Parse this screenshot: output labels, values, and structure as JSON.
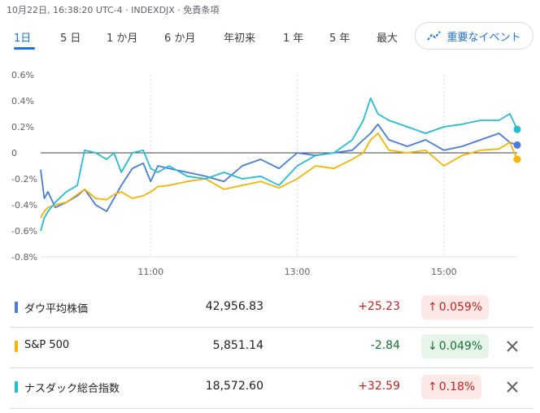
{
  "header": {
    "timestamp_line": "10月22日, 16:38:20 UTC-4 · INDEXDJX · 免責条項"
  },
  "tabs": [
    {
      "label": "1日",
      "active": true
    },
    {
      "label": "5 日",
      "active": false
    },
    {
      "label": "1 か月",
      "active": false
    },
    {
      "label": "6 か月",
      "active": false
    },
    {
      "label": "年初来",
      "active": false
    },
    {
      "label": "1 年",
      "active": false
    },
    {
      "label": "5 年",
      "active": false
    },
    {
      "label": "最大",
      "active": false
    }
  ],
  "events_button": {
    "label": "重要なイベント",
    "icon": "trend-line-icon"
  },
  "chart_data": {
    "type": "line",
    "title": "",
    "xlabel": "",
    "ylabel": "",
    "y_tick_labels": [
      "0.6%",
      "0.4%",
      "0.2%",
      "0",
      "-0.2%",
      "-0.4%",
      "-0.6%",
      "-0.8%"
    ],
    "y_ticks": [
      0.6,
      0.4,
      0.2,
      0,
      -0.2,
      -0.4,
      -0.6,
      -0.8
    ],
    "ylim": [
      -0.8,
      0.6
    ],
    "x_tick_labels": [
      "11:00",
      "13:00",
      "15:00"
    ],
    "x_ticks_hours": [
      11,
      13,
      15
    ],
    "xlim_hours": [
      9.5,
      16
    ],
    "grid": "vertical dashed",
    "series": [
      {
        "name": "ダウ平均株価",
        "color": "#4a7bdc",
        "x": [
          9.5,
          9.55,
          9.6,
          9.7,
          9.85,
          10,
          10.1,
          10.25,
          10.4,
          10.5,
          10.6,
          10.75,
          10.9,
          11,
          11.1,
          11.25,
          11.5,
          11.75,
          12,
          12.25,
          12.5,
          12.75,
          13,
          13.25,
          13.5,
          13.75,
          13.9,
          14,
          14.1,
          14.25,
          14.5,
          14.75,
          15,
          15.25,
          15.5,
          15.75,
          15.9,
          16
        ],
        "y": [
          -0.13,
          -0.35,
          -0.3,
          -0.42,
          -0.38,
          -0.33,
          -0.28,
          -0.4,
          -0.45,
          -0.35,
          -0.25,
          -0.12,
          -0.08,
          -0.22,
          -0.1,
          -0.12,
          -0.15,
          -0.18,
          -0.22,
          -0.1,
          -0.05,
          -0.12,
          0.0,
          -0.02,
          0.0,
          0.02,
          0.1,
          0.15,
          0.22,
          0.1,
          0.05,
          0.1,
          0.02,
          0.05,
          0.1,
          0.15,
          0.08,
          0.06
        ]
      },
      {
        "name": "S&P 500",
        "color": "#f4b400",
        "x": [
          9.5,
          9.55,
          9.6,
          9.7,
          9.85,
          10,
          10.1,
          10.25,
          10.4,
          10.5,
          10.6,
          10.75,
          10.9,
          11,
          11.1,
          11.25,
          11.5,
          11.75,
          12,
          12.25,
          12.5,
          12.75,
          13,
          13.25,
          13.5,
          13.75,
          13.9,
          14,
          14.1,
          14.25,
          14.5,
          14.75,
          15,
          15.25,
          15.5,
          15.75,
          15.9,
          16
        ],
        "y": [
          -0.5,
          -0.45,
          -0.42,
          -0.4,
          -0.38,
          -0.32,
          -0.28,
          -0.35,
          -0.36,
          -0.32,
          -0.3,
          -0.35,
          -0.33,
          -0.3,
          -0.26,
          -0.25,
          -0.22,
          -0.2,
          -0.28,
          -0.25,
          -0.22,
          -0.27,
          -0.2,
          -0.1,
          -0.12,
          -0.05,
          0.0,
          0.1,
          0.15,
          0.02,
          0.0,
          0.02,
          -0.1,
          -0.02,
          0.02,
          0.03,
          0.08,
          -0.05
        ]
      },
      {
        "name": "ナスダック総合指数",
        "color": "#26bcd6",
        "x": [
          9.5,
          9.55,
          9.6,
          9.7,
          9.85,
          10,
          10.1,
          10.25,
          10.4,
          10.5,
          10.6,
          10.75,
          10.9,
          11,
          11.1,
          11.25,
          11.5,
          11.75,
          12,
          12.25,
          12.5,
          12.75,
          13,
          13.25,
          13.5,
          13.75,
          13.9,
          14,
          14.1,
          14.25,
          14.5,
          14.75,
          15,
          15.25,
          15.5,
          15.75,
          15.9,
          16
        ],
        "y": [
          -0.6,
          -0.5,
          -0.45,
          -0.38,
          -0.3,
          -0.25,
          0.02,
          0.0,
          -0.05,
          0.0,
          -0.15,
          0.0,
          0.02,
          -0.12,
          -0.15,
          -0.1,
          -0.18,
          -0.2,
          -0.15,
          -0.2,
          -0.18,
          -0.25,
          -0.1,
          -0.02,
          0.0,
          0.1,
          0.25,
          0.42,
          0.3,
          0.25,
          0.2,
          0.15,
          0.2,
          0.22,
          0.25,
          0.25,
          0.3,
          0.18
        ]
      }
    ]
  },
  "rows": [
    {
      "name": "ダウ平均株価",
      "price": "42,956.83",
      "change": "+25.23",
      "pct": "0.059%",
      "direction": "up",
      "color": "#4a7bdc",
      "removable": false
    },
    {
      "name": "S&P 500",
      "price": "5,851.14",
      "change": "-2.84",
      "pct": "0.049%",
      "direction": "down",
      "color": "#f4b400",
      "removable": true
    },
    {
      "name": "ナスダック総合指数",
      "price": "18,572.60",
      "change": "+32.59",
      "pct": "0.18%",
      "direction": "up",
      "color": "#26bcd6",
      "removable": true
    }
  ],
  "colors": {
    "up": "#c5221f",
    "down": "#137333",
    "accent": "#1a73e8"
  }
}
